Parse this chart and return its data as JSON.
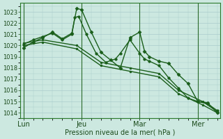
{
  "background_color": "#cce8e0",
  "grid_color": "#aacccc",
  "line_color": "#1a5e1a",
  "xlabel": "Pression niveau de la mer( hPa )",
  "ylim": [
    1013.5,
    1023.8
  ],
  "yticks": [
    1014,
    1015,
    1016,
    1017,
    1018,
    1019,
    1020,
    1021,
    1022,
    1023
  ],
  "xtick_labels": [
    "Lun",
    "Jeu",
    "Mar",
    "Mer"
  ],
  "xtick_positions": [
    0,
    6,
    12,
    18
  ],
  "vline_positions": [
    0,
    6,
    12,
    18
  ],
  "xlim": [
    -0.3,
    20.3
  ],
  "line_width": 1.0,
  "marker_size": 2.5,
  "series1_x": [
    0,
    1,
    2,
    3,
    4,
    5,
    5.5,
    6,
    7,
    8,
    9,
    10,
    11,
    12,
    12.5,
    13,
    14,
    15,
    16,
    17,
    18,
    19,
    20
  ],
  "series1_y": [
    1019.8,
    1020.3,
    1020.7,
    1021.2,
    1020.6,
    1021.1,
    1023.3,
    1023.2,
    1021.2,
    1019.4,
    1018.7,
    1018.0,
    1020.7,
    1021.2,
    1019.5,
    1019.0,
    1018.6,
    1018.4,
    1017.4,
    1016.6,
    1015.0,
    1014.9,
    1014.0
  ],
  "series2_x": [
    0,
    1,
    2,
    3,
    4,
    5,
    5.3,
    5.7,
    6.5,
    7.5,
    8.5,
    9.5,
    10,
    11,
    12,
    12.5,
    13,
    14,
    15,
    16,
    17,
    18,
    19,
    20
  ],
  "series2_y": [
    1020.1,
    1020.5,
    1020.8,
    1021.1,
    1020.5,
    1021.0,
    1022.5,
    1022.6,
    1021.0,
    1019.3,
    1018.5,
    1018.8,
    1019.3,
    1020.5,
    1019.3,
    1018.8,
    1018.6,
    1018.2,
    1017.1,
    1016.2,
    1015.3,
    1015.0,
    1014.8,
    1014.2
  ],
  "series3_x": [
    0,
    2,
    5.5,
    8,
    11,
    14,
    16,
    18.5,
    20
  ],
  "series3_y": [
    1020.2,
    1020.5,
    1020.0,
    1018.5,
    1018.0,
    1017.5,
    1016.0,
    1015.0,
    1014.1
  ],
  "series4_x": [
    0,
    2,
    5.5,
    8,
    11,
    14,
    16,
    18.5,
    20
  ],
  "series4_y": [
    1020.0,
    1020.3,
    1019.7,
    1018.2,
    1017.7,
    1017.2,
    1015.7,
    1014.7,
    1014.0
  ]
}
